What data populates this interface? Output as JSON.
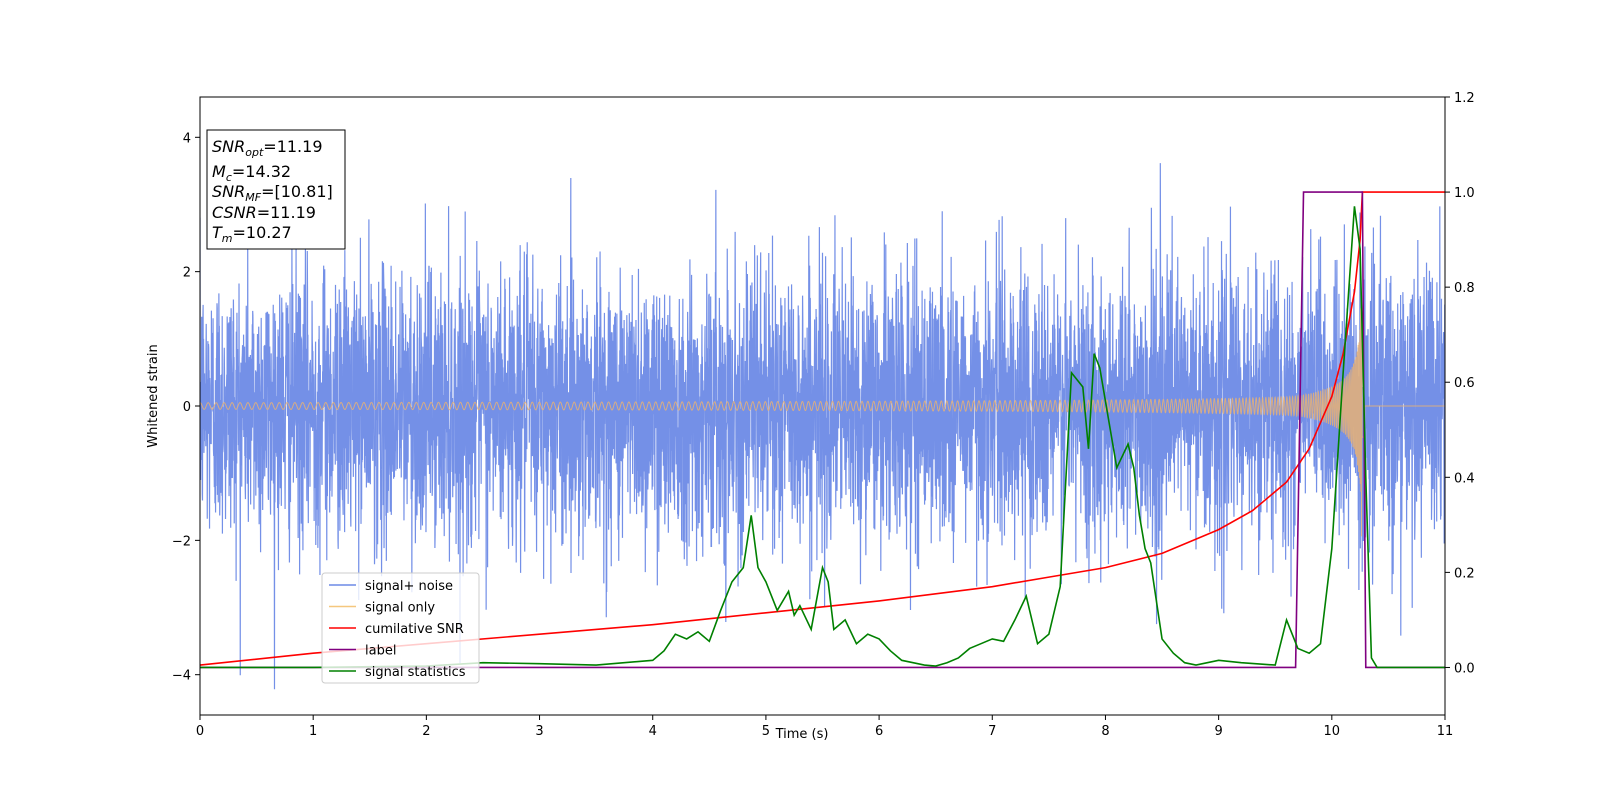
{
  "chart_data": {
    "type": "line",
    "title": "",
    "xlabel": "Time (s)",
    "ylabel_left": "Whitened strain",
    "ylabel_right": "",
    "xlim": [
      0,
      11
    ],
    "ylim_left": [
      -4.6,
      4.6
    ],
    "ylim_right": [
      -0.1,
      1.2
    ],
    "xticks": [
      "0",
      "1",
      "2",
      "3",
      "4",
      "5",
      "6",
      "7",
      "8",
      "9",
      "10",
      "11"
    ],
    "yticks_left": [
      "−4",
      "−2",
      "0",
      "2",
      "4"
    ],
    "yticks_left_values": [
      -4,
      -2,
      0,
      2,
      4
    ],
    "yticks_right": [
      "0.0",
      "0.2",
      "0.4",
      "0.6",
      "0.8",
      "1.0",
      "1.2"
    ],
    "yticks_right_values": [
      0.0,
      0.2,
      0.4,
      0.6,
      0.8,
      1.0,
      1.2
    ],
    "grid": false,
    "legend_placement": "lower-left",
    "legend": [
      {
        "label": "signal+ noise",
        "color": "#6d8ae6"
      },
      {
        "label": "signal only",
        "color": "#f5c77e"
      },
      {
        "label": "cumilative SNR",
        "color": "#ff0000"
      },
      {
        "label": "label",
        "color": "#800080"
      },
      {
        "label": "signal statistics",
        "color": "#008000"
      }
    ],
    "annotation": {
      "lines": [
        {
          "sym": "SNR",
          "sub": "opt",
          "val": "=11.19"
        },
        {
          "sym": "M",
          "sub": "c",
          "val": "=14.32"
        },
        {
          "sym": "SNR",
          "sub": "MF",
          "val": "=[10.81]"
        },
        {
          "sym": "CSNR",
          "sub": "",
          "val": "=11.19"
        },
        {
          "sym": "T",
          "sub": "m",
          "val": "=10.27"
        }
      ]
    },
    "series": [
      {
        "name": "signal+ noise",
        "axis": "left",
        "color": "#6d8ae6",
        "kind": "noise",
        "amplitude_std": 1.0,
        "x_range": [
          0,
          11
        ]
      },
      {
        "name": "signal only",
        "axis": "left",
        "color": "#e8b274",
        "kind": "chirp",
        "merger_time": 10.27,
        "peak_amplitude": 2.2
      },
      {
        "name": "cumilative SNR",
        "axis": "right",
        "x": [
          0,
          1,
          2,
          3,
          4,
          5,
          6,
          7,
          7.5,
          8,
          8.5,
          9,
          9.3,
          9.6,
          9.8,
          10,
          10.1,
          10.2,
          10.25,
          10.27,
          10.27,
          11
        ],
        "y": [
          0.005,
          0.03,
          0.05,
          0.07,
          0.09,
          0.115,
          0.14,
          0.17,
          0.19,
          0.21,
          0.24,
          0.29,
          0.33,
          0.39,
          0.46,
          0.57,
          0.66,
          0.79,
          0.9,
          1.0,
          1.0,
          1.0
        ]
      },
      {
        "name": "label",
        "axis": "right",
        "x": [
          0,
          9.68,
          9.75,
          10.27,
          10.3,
          11
        ],
        "y": [
          0.0,
          0.0,
          1.0,
          1.0,
          0.0,
          0.0
        ]
      },
      {
        "name": "signal statistics",
        "axis": "right",
        "x": [
          0,
          1,
          2,
          2.5,
          3,
          3.5,
          4,
          4.1,
          4.2,
          4.3,
          4.4,
          4.5,
          4.6,
          4.7,
          4.8,
          4.87,
          4.93,
          5.0,
          5.1,
          5.2,
          5.25,
          5.3,
          5.4,
          5.5,
          5.55,
          5.6,
          5.7,
          5.8,
          5.9,
          6.0,
          6.1,
          6.2,
          6.3,
          6.4,
          6.5,
          6.6,
          6.7,
          6.8,
          6.9,
          7.0,
          7.1,
          7.2,
          7.3,
          7.4,
          7.5,
          7.6,
          7.7,
          7.8,
          7.85,
          7.9,
          7.95,
          8.0,
          8.1,
          8.2,
          8.25,
          8.3,
          8.35,
          8.4,
          8.5,
          8.6,
          8.7,
          8.8,
          8.9,
          9.0,
          9.2,
          9.5,
          9.6,
          9.7,
          9.8,
          9.9,
          10.0,
          10.1,
          10.2,
          10.25,
          10.3,
          10.35,
          10.4,
          11
        ],
        "y": [
          0.0,
          0.0,
          0.003,
          0.01,
          0.008,
          0.005,
          0.015,
          0.035,
          0.07,
          0.06,
          0.075,
          0.055,
          0.12,
          0.18,
          0.21,
          0.32,
          0.21,
          0.18,
          0.12,
          0.16,
          0.11,
          0.13,
          0.08,
          0.21,
          0.18,
          0.08,
          0.1,
          0.05,
          0.07,
          0.06,
          0.035,
          0.015,
          0.01,
          0.005,
          0.003,
          0.01,
          0.02,
          0.04,
          0.05,
          0.06,
          0.055,
          0.1,
          0.15,
          0.05,
          0.07,
          0.17,
          0.62,
          0.59,
          0.46,
          0.66,
          0.63,
          0.56,
          0.42,
          0.47,
          0.42,
          0.32,
          0.25,
          0.22,
          0.06,
          0.03,
          0.01,
          0.005,
          0.01,
          0.015,
          0.01,
          0.005,
          0.1,
          0.04,
          0.03,
          0.05,
          0.25,
          0.62,
          0.97,
          0.88,
          0.4,
          0.02,
          0.0,
          0.0
        ]
      }
    ]
  }
}
